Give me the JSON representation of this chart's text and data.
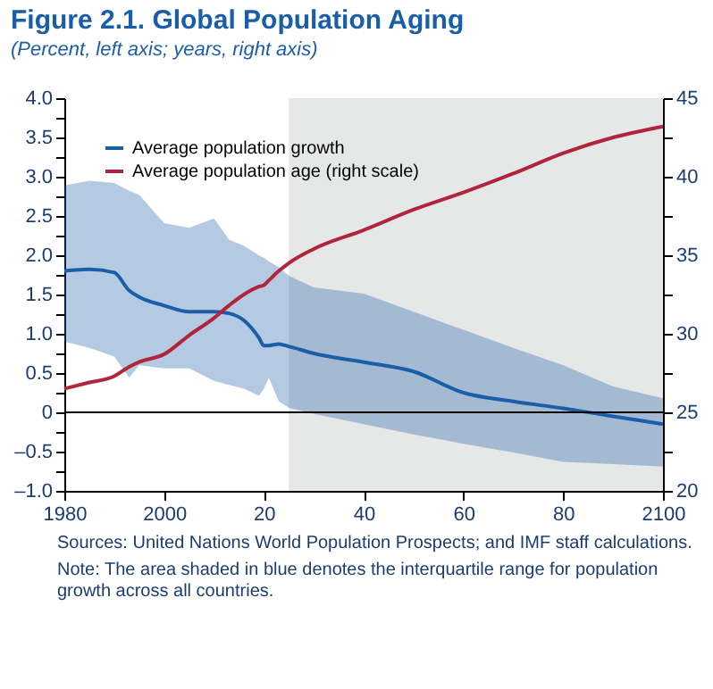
{
  "chart_data": {
    "type": "line",
    "title": "Figure 2.1.  Global Population Aging",
    "subtitle": "(Percent, left axis; years, right axis)",
    "annotations": [
      "Sources: United Nations World Population Prospects; and IMF staff calculations.",
      "Note: The area shaded in blue denotes the interquartile range for population growth across all countries."
    ],
    "x": [
      1980,
      1985,
      1990,
      1993,
      1995,
      2000,
      2005,
      2010,
      2013,
      2016,
      2019,
      2020,
      2021,
      2023,
      2025,
      2030,
      2040,
      2050,
      2060,
      2070,
      2080,
      2090,
      2100
    ],
    "series": [
      {
        "name": "Average population growth",
        "color": "#1a5da8",
        "values": [
          1.8,
          1.82,
          1.78,
          1.55,
          1.47,
          1.36,
          1.28,
          1.28,
          1.26,
          1.17,
          0.95,
          0.85,
          0.85,
          0.87,
          0.84,
          0.75,
          0.64,
          0.52,
          0.25,
          0.14,
          0.05,
          -0.05,
          -0.15
        ],
        "upper": [
          2.89,
          2.95,
          2.92,
          2.82,
          2.77,
          2.41,
          2.35,
          2.47,
          2.2,
          2.12,
          2.0,
          1.97,
          1.92,
          1.85,
          1.74,
          1.59,
          1.51,
          1.28,
          1.05,
          0.82,
          0.6,
          0.33,
          0.18
        ],
        "lower": [
          0.9,
          0.82,
          0.71,
          0.44,
          0.6,
          0.56,
          0.56,
          0.4,
          0.35,
          0.3,
          0.21,
          0.3,
          0.44,
          0.14,
          0.06,
          -0.02,
          -0.15,
          -0.28,
          -0.4,
          -0.51,
          -0.63,
          -0.66,
          -0.69
        ]
      },
      {
        "name": "Average population age (right scale)",
        "color": "#b0253a",
        "axis": "y2",
        "values": [
          26.5,
          26.9,
          27.3,
          27.9,
          28.2,
          28.7,
          29.9,
          31.0,
          31.8,
          32.5,
          33.0,
          33.1,
          33.4,
          34.0,
          34.5,
          35.4,
          36.6,
          37.9,
          39.0,
          40.2,
          41.5,
          42.5,
          43.2
        ]
      }
    ],
    "xlim": [
      1980,
      2100
    ],
    "xticks": [
      1980,
      2000,
      {
        "value": 2020,
        "label": "20"
      },
      {
        "value": 2040,
        "label": "40"
      },
      {
        "value": 2060,
        "label": "60"
      },
      {
        "value": 2080,
        "label": "80"
      },
      2100
    ],
    "ylim": [
      -1,
      4
    ],
    "yticks": [
      {
        "value": -1,
        "label": "–1.0"
      },
      {
        "value": -0.75,
        "label": null
      },
      {
        "value": -0.5,
        "label": "–0.5"
      },
      {
        "value": -0.25,
        "label": null
      },
      0,
      {
        "value": 0.25,
        "label": null
      },
      {
        "value": 0.5,
        "label": "0.5"
      },
      {
        "value": 0.75,
        "label": null
      },
      {
        "value": 1,
        "label": "1.0"
      },
      {
        "value": 1.25,
        "label": null
      },
      {
        "value": 1.5,
        "label": "1.5"
      },
      {
        "value": 1.75,
        "label": null
      },
      {
        "value": 2,
        "label": "2.0"
      },
      {
        "value": 2.25,
        "label": null
      },
      {
        "value": 2.5,
        "label": "2.5"
      },
      {
        "value": 2.75,
        "label": null
      },
      {
        "value": 3,
        "label": "3.0"
      },
      {
        "value": 3.25,
        "label": null
      },
      {
        "value": 3.5,
        "label": "3.5"
      },
      {
        "value": 3.75,
        "label": null
      },
      {
        "value": 4,
        "label": "4.0"
      }
    ],
    "y2lim": [
      20,
      45
    ],
    "y2ticks": [
      20,
      {
        "value": 22.5,
        "label": null
      },
      25,
      {
        "value": 27.5,
        "label": null
      },
      30,
      {
        "value": 32.5,
        "label": null
      },
      35,
      {
        "value": 37.5,
        "label": null
      },
      40,
      {
        "value": 42.5,
        "label": null
      },
      45
    ],
    "ref_lines": [
      {
        "axis": "y",
        "value": 0,
        "color": "#000000"
      }
    ],
    "bands": [
      {
        "axis": "x",
        "from": 2025,
        "to": 2100,
        "color": "#e6e8e8"
      }
    ],
    "grid": false,
    "legend": "top left"
  }
}
